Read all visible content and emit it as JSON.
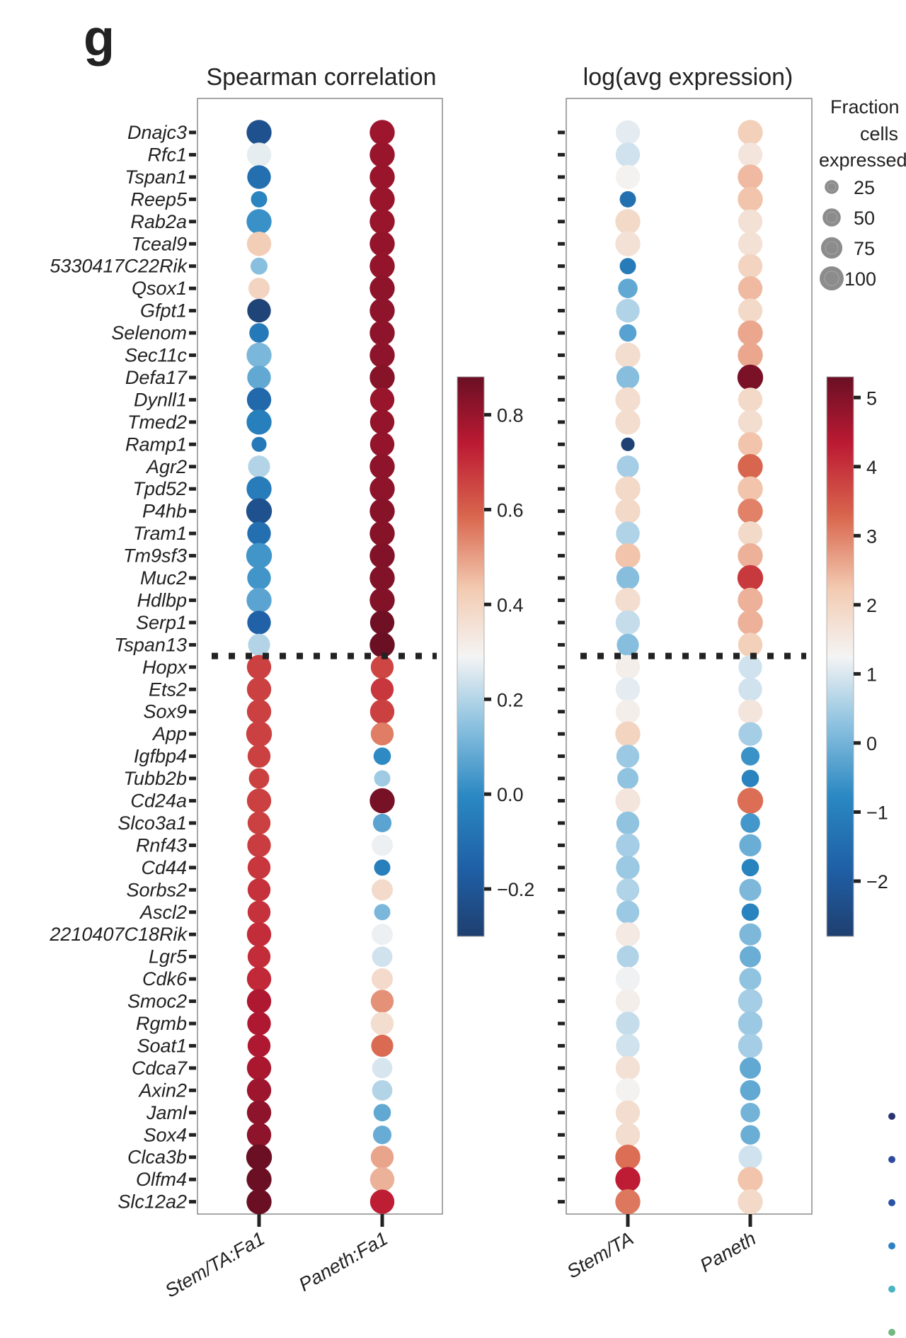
{
  "panel_letter": "g",
  "chart_data": [
    {
      "type": "scatter",
      "subtype": "dot-plot",
      "title": "Spearman correlation",
      "xlabel": "",
      "ylabel": "",
      "categories_x": [
        "Stem/TA:Fa1",
        "Paneth:Fa1"
      ],
      "categories_y": [
        "Dnajc3",
        "Rfc1",
        "Tspan1",
        "Reep5",
        "Rab2a",
        "Tceal9",
        "5330417C22Rik",
        "Qsox1",
        "Gfpt1",
        "Selenom",
        "Sec11c",
        "Defa17",
        "Dynll1",
        "Tmed2",
        "Ramp1",
        "Agr2",
        "Tpd52",
        "P4hb",
        "Tram1",
        "Tm9sf3",
        "Muc2",
        "Hdlbp",
        "Serp1",
        "Tspan13",
        "Hopx",
        "Ets2",
        "Sox9",
        "App",
        "Igfbp4",
        "Tubb2b",
        "Cd24a",
        "Slco3a1",
        "Rnf43",
        "Cd44",
        "Sorbs2",
        "Ascl2",
        "2210407C18Rik",
        "Lgr5",
        "Cdk6",
        "Smoc2",
        "Rgmb",
        "Soat1",
        "Cdca7",
        "Axin2",
        "Jaml",
        "Sox4",
        "Clca3b",
        "Olfm4",
        "Slc12a2"
      ],
      "series": [
        {
          "name": "Stem/TA:Fa1",
          "color_values": [
            -0.22,
            0.27,
            -0.1,
            -0.02,
            0.02,
            0.42,
            0.14,
            0.4,
            -0.28,
            -0.06,
            0.12,
            0.08,
            -0.12,
            -0.04,
            -0.06,
            0.2,
            -0.05,
            -0.22,
            -0.1,
            0.03,
            0.03,
            0.07,
            -0.15,
            0.2,
            0.66,
            0.66,
            0.66,
            0.66,
            0.66,
            0.66,
            0.66,
            0.66,
            0.67,
            0.68,
            0.69,
            0.69,
            0.7,
            0.7,
            0.71,
            0.76,
            0.76,
            0.76,
            0.77,
            0.79,
            0.82,
            0.82,
            0.88,
            0.92,
            0.92
          ],
          "size_values": [
            75,
            70,
            65,
            25,
            75,
            70,
            28,
            50,
            65,
            40,
            75,
            65,
            70,
            75,
            20,
            55,
            75,
            80,
            65,
            80,
            65,
            75,
            65,
            55,
            70,
            70,
            70,
            80,
            60,
            45,
            70,
            60,
            65,
            60,
            60,
            60,
            70,
            60,
            70,
            70,
            65,
            60,
            70,
            70,
            70,
            70,
            80,
            75,
            75
          ]
        },
        {
          "name": "Paneth:Fa1",
          "color_values": [
            0.79,
            0.8,
            0.8,
            0.8,
            0.8,
            0.81,
            0.81,
            0.82,
            0.82,
            0.82,
            0.82,
            0.83,
            0.8,
            0.81,
            0.81,
            0.82,
            0.82,
            0.83,
            0.83,
            0.84,
            0.84,
            0.84,
            0.87,
            0.89,
            0.65,
            0.68,
            0.66,
            0.55,
            0.0,
            0.17,
            0.86,
            0.07,
            0.28,
            -0.04,
            0.38,
            0.12,
            0.28,
            0.24,
            0.38,
            0.52,
            0.37,
            0.58,
            0.25,
            0.2,
            0.08,
            0.09,
            0.49,
            0.47,
            0.73
          ],
          "size_values": [
            75,
            75,
            75,
            75,
            75,
            75,
            75,
            75,
            75,
            75,
            75,
            75,
            70,
            70,
            70,
            75,
            75,
            75,
            75,
            75,
            75,
            75,
            70,
            75,
            60,
            60,
            70,
            60,
            30,
            25,
            75,
            35,
            50,
            25,
            50,
            25,
            50,
            45,
            50,
            60,
            60,
            55,
            45,
            45,
            30,
            35,
            60,
            70,
            70
          ]
        }
      ],
      "colorbar": {
        "ticks": [
          0.8,
          0.6,
          0.4,
          0.2,
          0.0,
          -0.2
        ],
        "tick_labels": [
          "0.8",
          "0.6",
          "0.4",
          "0.2",
          "0.0",
          "−0.2"
        ],
        "range": [
          -0.3,
          0.88
        ]
      },
      "annotations": [
        "dotted horizontal separator between Tspan13 and Hopx"
      ]
    },
    {
      "type": "scatter",
      "subtype": "dot-plot",
      "title": "log(avg expression)",
      "xlabel": "",
      "ylabel": "",
      "categories_x": [
        "Stem/TA",
        "Paneth"
      ],
      "categories_y": [
        "Dnajc3",
        "Rfc1",
        "Tspan1",
        "Reep5",
        "Rab2a",
        "Tceal9",
        "5330417C22Rik",
        "Qsox1",
        "Gfpt1",
        "Selenom",
        "Sec11c",
        "Defa17",
        "Dynll1",
        "Tmed2",
        "Ramp1",
        "Agr2",
        "Tpd52",
        "P4hb",
        "Tram1",
        "Tm9sf3",
        "Muc2",
        "Hdlbp",
        "Serp1",
        "Tspan13",
        "Hopx",
        "Ets2",
        "Sox9",
        "App",
        "Igfbp4",
        "Tubb2b",
        "Cd24a",
        "Slco3a1",
        "Rnf43",
        "Cd44",
        "Sorbs2",
        "Ascl2",
        "2210407C18Rik",
        "Lgr5",
        "Cdk6",
        "Smoc2",
        "Rgmb",
        "Soat1",
        "Cdca7",
        "Axin2",
        "Jaml",
        "Sox4",
        "Clca3b",
        "Olfm4",
        "Slc12a2"
      ],
      "series": [
        {
          "name": "Stem/TA",
          "color_values": [
            1.1,
            0.9,
            1.3,
            -1.4,
            1.9,
            1.7,
            -1.1,
            -0.2,
            0.6,
            -0.3,
            1.8,
            0.2,
            1.8,
            1.8,
            -2.7,
            0.5,
            1.9,
            1.9,
            0.6,
            2.3,
            0.2,
            1.8,
            0.8,
            0.2,
            1.4,
            1.1,
            1.4,
            2.0,
            0.4,
            0.3,
            1.6,
            0.3,
            0.5,
            0.4,
            0.6,
            0.4,
            1.5,
            0.6,
            1.2,
            1.4,
            0.8,
            0.9,
            1.7,
            1.3,
            1.8,
            1.8,
            3.2,
            4.3,
            3.1
          ],
          "size_values": [
            70,
            70,
            70,
            25,
            75,
            75,
            25,
            40,
            65,
            30,
            75,
            60,
            75,
            75,
            15,
            55,
            75,
            75,
            65,
            75,
            60,
            75,
            70,
            55,
            70,
            70,
            70,
            75,
            60,
            50,
            75,
            60,
            65,
            65,
            60,
            60,
            70,
            55,
            70,
            70,
            65,
            65,
            70,
            70,
            70,
            70,
            75,
            75,
            75
          ]
        },
        {
          "name": "Paneth",
          "color_values": [
            2.1,
            1.6,
            2.4,
            2.3,
            1.7,
            1.7,
            2.0,
            2.4,
            1.9,
            2.6,
            2.6,
            5.1,
            1.9,
            1.8,
            2.3,
            3.3,
            2.3,
            3.0,
            1.9,
            2.5,
            3.9,
            2.5,
            2.5,
            2.1,
            0.9,
            0.9,
            1.6,
            0.5,
            -0.6,
            -0.9,
            3.2,
            -0.5,
            -0.1,
            -0.9,
            0.1,
            -0.9,
            0.1,
            -0.1,
            0.3,
            0.5,
            0.4,
            0.5,
            -0.2,
            -0.2,
            0.0,
            -0.1,
            0.9,
            2.3,
            1.9
          ],
          "size_values": [
            75,
            70,
            75,
            75,
            70,
            70,
            70,
            70,
            70,
            75,
            75,
            80,
            70,
            70,
            70,
            75,
            75,
            75,
            70,
            75,
            80,
            75,
            75,
            70,
            65,
            65,
            70,
            65,
            35,
            30,
            80,
            40,
            55,
            30,
            55,
            30,
            55,
            50,
            55,
            70,
            70,
            70,
            50,
            45,
            40,
            40,
            65,
            75,
            75
          ]
        }
      ],
      "colorbar": {
        "ticks": [
          5,
          4,
          3,
          2,
          1,
          0,
          -1,
          -2
        ],
        "tick_labels": [
          "5",
          "4",
          "3",
          "2",
          "1",
          "0",
          "−1",
          "−2"
        ],
        "range": [
          -2.8,
          5.3
        ]
      },
      "annotations": [
        "dotted horizontal separator between Tspan13 and Hopx"
      ]
    }
  ],
  "size_legend": {
    "title_lines": [
      "Fraction",
      "cells",
      "expressed"
    ],
    "entries": [
      {
        "label": "25",
        "value": 25
      },
      {
        "label": "50",
        "value": 50
      },
      {
        "label": "75",
        "value": 75
      },
      {
        "label": "100",
        "value": 100
      }
    ]
  },
  "edge_dots": {
    "colors": [
      "#2b3270",
      "#2d4a9c",
      "#2b52a4",
      "#2f7fc3",
      "#4db3c4",
      "#72b683"
    ]
  },
  "palette": {
    "neg": "#053061",
    "mid": "#f7f7f7",
    "pos": "#67001f",
    "frame": "#808080",
    "text": "#222222",
    "legend_dot": "#8c8c8c"
  }
}
